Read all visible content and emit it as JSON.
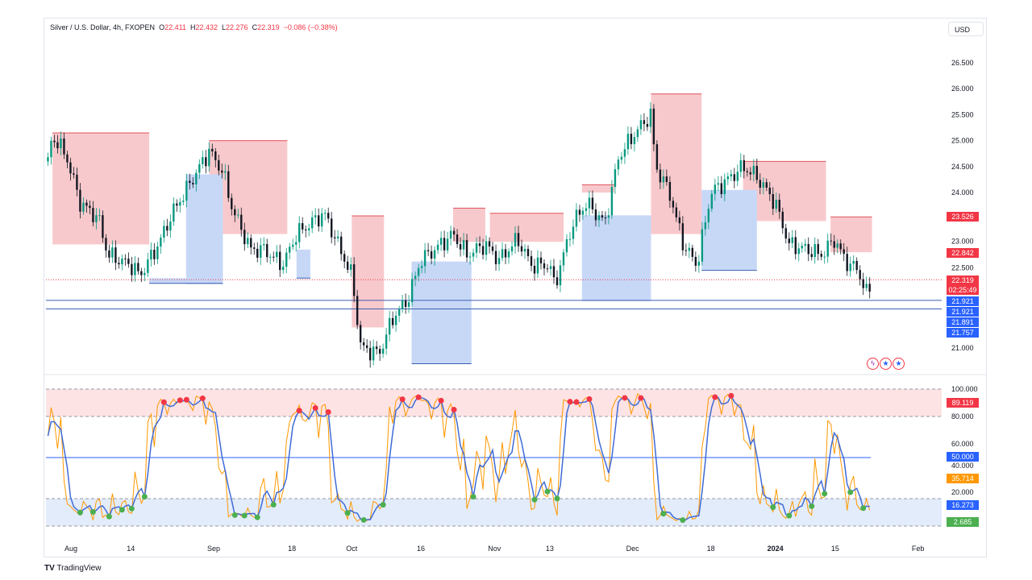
{
  "header": {
    "symbol": "Silver / U.S. Dollar, 4h, FXOPEN",
    "o_label": "O",
    "o": "22.411",
    "h_label": "H",
    "h": "22.432",
    "l_label": "L",
    "l": "22.276",
    "c_label": "C",
    "c": "22.319",
    "change": "−0.086 (−0.38%)",
    "currency": "USD"
  },
  "footer": {
    "brand": "TradingView"
  },
  "price_tags": {
    "zone_top": "23.526",
    "zone_mid": "22.842",
    "last": "22.319",
    "countdown": "02:25:49",
    "l1": "21.921",
    "l2": "21.921",
    "l3": "21.891",
    "l4": "21.757"
  },
  "osc_tags": {
    "upper": "89.119",
    "mid": "50.000",
    "k": "35.714",
    "d": "16.273",
    "low": "2.685"
  },
  "colors": {
    "up": "#089981",
    "down": "#f23645",
    "supply": "#f8c9cc",
    "demand": "#c7d8f7",
    "blue": "#2962ff",
    "orange": "#ff9800",
    "k": "#ff9800",
    "d": "#3f6bd6"
  },
  "chart_data": [
    {
      "type": "candlestick",
      "title": "Silver / U.S. Dollar, 4h, FXOPEN",
      "x_unit": "days since Aug 1 2023",
      "ylim": [
        20.6,
        26.8
      ],
      "y_ticks": [
        "26.500",
        "26.000",
        "25.500",
        "25.000",
        "24.500",
        "24.000",
        "23.500",
        "23.000",
        "22.500",
        "21.000"
      ],
      "y_tick_values": [
        26.5,
        26.0,
        25.5,
        25.0,
        24.5,
        24.0,
        23.5,
        23.0,
        22.5,
        21.0
      ],
      "x_ticks": [
        {
          "label": "Aug",
          "day": 0
        },
        {
          "label": "14",
          "day": 13
        },
        {
          "label": "Sep",
          "day": 31
        },
        {
          "label": "18",
          "day": 48
        },
        {
          "label": "Oct",
          "day": 61
        },
        {
          "label": "16",
          "day": 76
        },
        {
          "label": "Nov",
          "day": 92
        },
        {
          "label": "13",
          "day": 104
        },
        {
          "label": "Dec",
          "day": 122
        },
        {
          "label": "18",
          "day": 139
        },
        {
          "label": "2024",
          "day": 153
        },
        {
          "label": "15",
          "day": 166
        },
        {
          "label": "Feb",
          "day": 184
        }
      ],
      "close_anchors": [
        [
          -5,
          24.6
        ],
        [
          -4,
          25.1
        ],
        [
          -1,
          24.7
        ],
        [
          2,
          23.8
        ],
        [
          6,
          23.5
        ],
        [
          8,
          22.8
        ],
        [
          13,
          22.6
        ],
        [
          15,
          22.4
        ],
        [
          19,
          23.0
        ],
        [
          22,
          23.6
        ],
        [
          26,
          24.2
        ],
        [
          30,
          24.8
        ],
        [
          33,
          24.4
        ],
        [
          35,
          23.7
        ],
        [
          39,
          22.9
        ],
        [
          42,
          22.9
        ],
        [
          46,
          22.6
        ],
        [
          49,
          23.2
        ],
        [
          52,
          23.4
        ],
        [
          55,
          23.6
        ],
        [
          58,
          23.0
        ],
        [
          61,
          22.4
        ],
        [
          63,
          21.0
        ],
        [
          67,
          20.9
        ],
        [
          70,
          21.6
        ],
        [
          73,
          21.9
        ],
        [
          76,
          22.7
        ],
        [
          79,
          22.9
        ],
        [
          83,
          23.2
        ],
        [
          86,
          22.8
        ],
        [
          90,
          23.0
        ],
        [
          93,
          22.7
        ],
        [
          97,
          23.1
        ],
        [
          100,
          22.6
        ],
        [
          104,
          22.6
        ],
        [
          105,
          22.2
        ],
        [
          109,
          23.4
        ],
        [
          112,
          23.8
        ],
        [
          116,
          23.4
        ],
        [
          119,
          24.7
        ],
        [
          123,
          25.2
        ],
        [
          126,
          25.5
        ],
        [
          127,
          24.5
        ],
        [
          130,
          24.0
        ],
        [
          133,
          23.0
        ],
        [
          136,
          22.6
        ],
        [
          139,
          24.0
        ],
        [
          142,
          24.2
        ],
        [
          146,
          24.5
        ],
        [
          149,
          24.3
        ],
        [
          153,
          23.8
        ],
        [
          156,
          23.0
        ],
        [
          160,
          22.9
        ],
        [
          163,
          22.8
        ],
        [
          166,
          23.1
        ],
        [
          168,
          22.7
        ],
        [
          171,
          22.5
        ],
        [
          173,
          22.0
        ],
        [
          174,
          22.32
        ]
      ],
      "supply_zones": [
        [
          -4,
          17,
          25.15,
          23.0
        ],
        [
          30,
          47,
          25.0,
          23.2
        ],
        [
          61,
          68,
          23.55,
          21.4
        ],
        [
          83,
          90,
          23.7,
          23.05
        ],
        [
          91,
          107,
          23.6,
          23.05
        ],
        [
          111,
          118,
          24.15,
          24.0
        ],
        [
          126,
          137,
          25.9,
          23.2
        ],
        [
          146,
          164,
          24.6,
          23.45
        ],
        [
          165,
          174,
          23.53,
          22.85
        ]
      ],
      "demand_zones": [
        [
          17,
          33,
          22.35,
          22.25
        ],
        [
          25,
          33,
          24.35,
          22.25
        ],
        [
          74,
          87,
          22.67,
          20.7
        ],
        [
          111,
          126,
          23.56,
          21.92
        ],
        [
          137,
          149,
          24.05,
          22.5
        ],
        [
          49,
          52,
          22.9,
          22.35
        ]
      ],
      "horizontal_lines": [
        21.921,
        21.757
      ],
      "last_price": 22.319
    },
    {
      "type": "line",
      "title": "Stochastic oscillator",
      "ylim": [
        0,
        100
      ],
      "y_ticks": [
        "100.000",
        "80.000",
        "60.000",
        "40.000",
        "20.000"
      ],
      "y_tick_values": [
        100,
        80,
        60,
        40,
        20
      ],
      "bands": {
        "upper": [
          80,
          100
        ],
        "lower": [
          0,
          20
        ],
        "mid": 50
      },
      "last_k": 35.714,
      "last_d": 16.273
    }
  ]
}
